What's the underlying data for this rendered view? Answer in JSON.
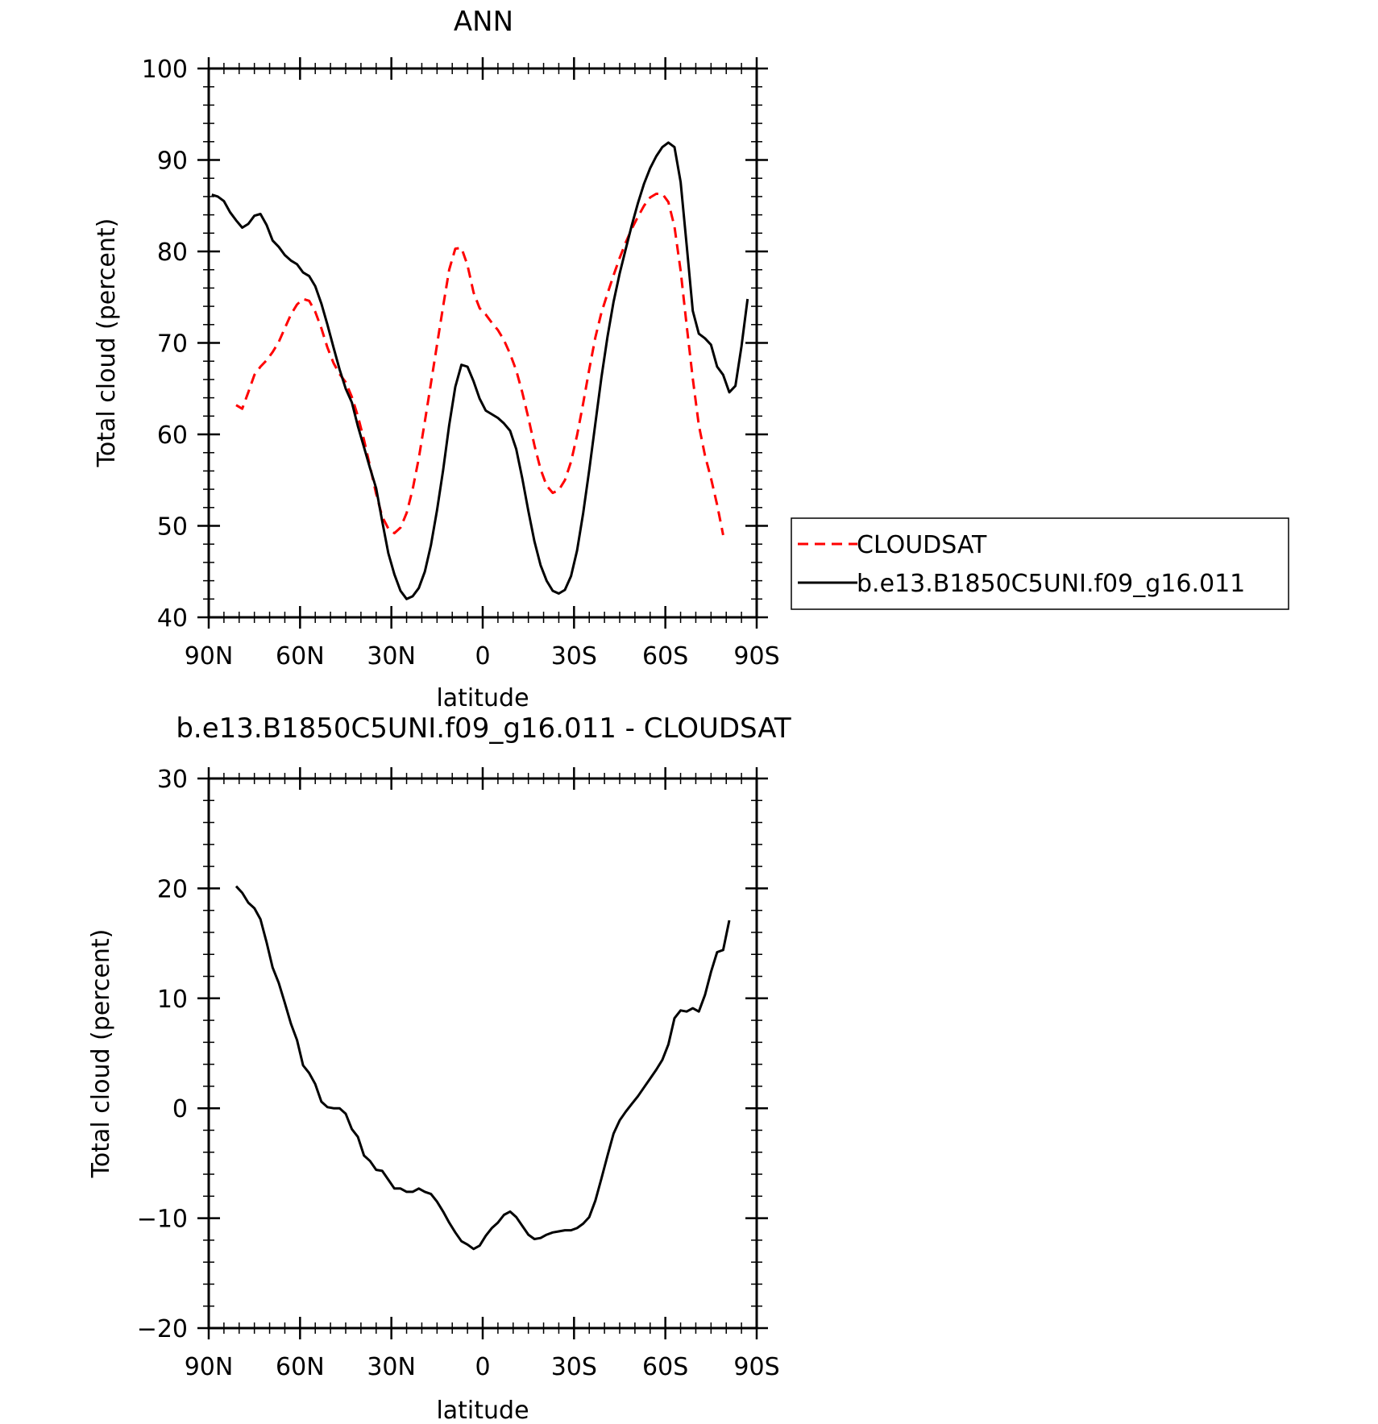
{
  "chart_data": [
    {
      "type": "line",
      "title": "ANN",
      "xlabel": "latitude",
      "ylabel": "Total cloud (percent)",
      "xlim": [
        90,
        -90
      ],
      "ylim": [
        40,
        100
      ],
      "xticks": [
        {
          "v": 90,
          "label": "90N"
        },
        {
          "v": 60,
          "label": "60N"
        },
        {
          "v": 30,
          "label": "30N"
        },
        {
          "v": 0,
          "label": "0"
        },
        {
          "v": -30,
          "label": "30S"
        },
        {
          "v": -60,
          "label": "60S"
        },
        {
          "v": -90,
          "label": "90S"
        }
      ],
      "yticks": [
        {
          "v": 40,
          "label": "40"
        },
        {
          "v": 50,
          "label": "50"
        },
        {
          "v": 60,
          "label": "60"
        },
        {
          "v": 70,
          "label": "70"
        },
        {
          "v": 80,
          "label": "80"
        },
        {
          "v": 90,
          "label": "90"
        },
        {
          "v": 100,
          "label": "100"
        }
      ],
      "legend_position": "right",
      "series": [
        {
          "name": "CLOUDSAT",
          "color": "#ff0000",
          "dash": "dashed",
          "points": [
            [
              81,
              63.2
            ],
            [
              79,
              62.8
            ],
            [
              77,
              64.6
            ],
            [
              75,
              66.5
            ],
            [
              73,
              67.4
            ],
            [
              71,
              68.1
            ],
            [
              69,
              69.0
            ],
            [
              67,
              70.1
            ],
            [
              65,
              71.6
            ],
            [
              63,
              73.1
            ],
            [
              61,
              74.2
            ],
            [
              59,
              74.8
            ],
            [
              57,
              74.6
            ],
            [
              55,
              73.4
            ],
            [
              53,
              71.6
            ],
            [
              51,
              69.5
            ],
            [
              49,
              67.8
            ],
            [
              47,
              66.6
            ],
            [
              45,
              65.7
            ],
            [
              43,
              64.1
            ],
            [
              41,
              62.0
            ],
            [
              39,
              59.4
            ],
            [
              37,
              56.5
            ],
            [
              35,
              53.5
            ],
            [
              33,
              51.0
            ],
            [
              31,
              49.7
            ],
            [
              29,
              49.2
            ],
            [
              27,
              49.8
            ],
            [
              25,
              51.4
            ],
            [
              23,
              54.0
            ],
            [
              21,
              57.4
            ],
            [
              19,
              61.4
            ],
            [
              17,
              65.6
            ],
            [
              15,
              69.8
            ],
            [
              13,
              74.0
            ],
            [
              11,
              78.0
            ],
            [
              9,
              80.3
            ],
            [
              7,
              80.4
            ],
            [
              5,
              78.5
            ],
            [
              3,
              75.5
            ],
            [
              1,
              73.8
            ],
            [
              -1,
              73.1
            ],
            [
              -3,
              72.2
            ],
            [
              -5,
              71.4
            ],
            [
              -7,
              70.3
            ],
            [
              -9,
              68.8
            ],
            [
              -11,
              67.0
            ],
            [
              -13,
              64.6
            ],
            [
              -15,
              61.8
            ],
            [
              -17,
              58.8
            ],
            [
              -19,
              56.2
            ],
            [
              -21,
              54.4
            ],
            [
              -23,
              53.6
            ],
            [
              -25,
              53.9
            ],
            [
              -27,
              55.0
            ],
            [
              -29,
              57.0
            ],
            [
              -31,
              59.9
            ],
            [
              -33,
              63.4
            ],
            [
              -35,
              67.1
            ],
            [
              -37,
              70.6
            ],
            [
              -39,
              73.3
            ],
            [
              -41,
              75.4
            ],
            [
              -43,
              77.4
            ],
            [
              -45,
              79.3
            ],
            [
              -47,
              81.0
            ],
            [
              -49,
              82.5
            ],
            [
              -51,
              83.8
            ],
            [
              -53,
              85.0
            ],
            [
              -55,
              85.9
            ],
            [
              -57,
              86.3
            ],
            [
              -59,
              86.3
            ],
            [
              -61,
              85.4
            ],
            [
              -63,
              82.7
            ],
            [
              -65,
              77.9
            ],
            [
              -67,
              71.9
            ],
            [
              -69,
              66.1
            ],
            [
              -71,
              61.0
            ],
            [
              -73,
              57.7
            ],
            [
              -75,
              55.2
            ],
            [
              -77,
              52.3
            ],
            [
              -79,
              49.0
            ]
          ]
        },
        {
          "name": "b.e13.B1850C5UNI.f09_g16.011",
          "color": "#000000",
          "dash": "solid",
          "points": [
            [
              89,
              86.2
            ],
            [
              87,
              86.0
            ],
            [
              85,
              85.5
            ],
            [
              83,
              84.3
            ],
            [
              81,
              83.4
            ],
            [
              79,
              82.6
            ],
            [
              77,
              83.0
            ],
            [
              75,
              83.9
            ],
            [
              73,
              84.1
            ],
            [
              71,
              82.9
            ],
            [
              69,
              81.2
            ],
            [
              67,
              80.5
            ],
            [
              65,
              79.6
            ],
            [
              63,
              79.0
            ],
            [
              61,
              78.6
            ],
            [
              59,
              77.7
            ],
            [
              57,
              77.3
            ],
            [
              55,
              76.2
            ],
            [
              53,
              74.3
            ],
            [
              51,
              72.0
            ],
            [
              49,
              69.5
            ],
            [
              47,
              67.1
            ],
            [
              45,
              65.0
            ],
            [
              43,
              63.5
            ],
            [
              41,
              60.9
            ],
            [
              39,
              58.6
            ],
            [
              37,
              56.3
            ],
            [
              35,
              54.1
            ],
            [
              33,
              50.5
            ],
            [
              31,
              47.0
            ],
            [
              29,
              44.7
            ],
            [
              27,
              42.9
            ],
            [
              25,
              42.0
            ],
            [
              23,
              42.3
            ],
            [
              21,
              43.2
            ],
            [
              19,
              45.0
            ],
            [
              17,
              47.9
            ],
            [
              15,
              51.7
            ],
            [
              13,
              56.1
            ],
            [
              11,
              61.0
            ],
            [
              9,
              65.2
            ],
            [
              7,
              67.6
            ],
            [
              5,
              67.4
            ],
            [
              3,
              65.8
            ],
            [
              1,
              63.9
            ],
            [
              -1,
              62.6
            ],
            [
              -3,
              62.2
            ],
            [
              -5,
              61.8
            ],
            [
              -7,
              61.2
            ],
            [
              -9,
              60.4
            ],
            [
              -11,
              58.4
            ],
            [
              -13,
              55.2
            ],
            [
              -15,
              51.6
            ],
            [
              -17,
              48.3
            ],
            [
              -19,
              45.7
            ],
            [
              -21,
              44.0
            ],
            [
              -23,
              42.9
            ],
            [
              -25,
              42.6
            ],
            [
              -27,
              43.0
            ],
            [
              -29,
              44.5
            ],
            [
              -31,
              47.3
            ],
            [
              -33,
              51.4
            ],
            [
              -35,
              56.1
            ],
            [
              -37,
              61.2
            ],
            [
              -39,
              66.2
            ],
            [
              -41,
              70.7
            ],
            [
              -43,
              74.5
            ],
            [
              -45,
              77.6
            ],
            [
              -47,
              80.3
            ],
            [
              -49,
              82.9
            ],
            [
              -51,
              85.3
            ],
            [
              -53,
              87.4
            ],
            [
              -55,
              89.1
            ],
            [
              -57,
              90.4
            ],
            [
              -59,
              91.4
            ],
            [
              -61,
              91.9
            ],
            [
              -63,
              91.4
            ],
            [
              -65,
              87.6
            ],
            [
              -67,
              80.7
            ],
            [
              -69,
              73.5
            ],
            [
              -71,
              71.0
            ],
            [
              -73,
              70.5
            ],
            [
              -75,
              69.8
            ],
            [
              -77,
              67.4
            ],
            [
              -79,
              66.5
            ],
            [
              -81,
              64.6
            ],
            [
              -83,
              65.3
            ],
            [
              -85,
              69.6
            ],
            [
              -87,
              74.8
            ]
          ]
        }
      ]
    },
    {
      "type": "line",
      "title": "b.e13.B1850C5UNI.f09_g16.011 - CLOUDSAT",
      "xlabel": "latitude",
      "ylabel": "Total cloud (percent)",
      "xlim": [
        90,
        -90
      ],
      "ylim": [
        -20,
        30
      ],
      "xticks": [
        {
          "v": 90,
          "label": "90N"
        },
        {
          "v": 60,
          "label": "60N"
        },
        {
          "v": 30,
          "label": "30N"
        },
        {
          "v": 0,
          "label": "0"
        },
        {
          "v": -30,
          "label": "30S"
        },
        {
          "v": -60,
          "label": "60S"
        },
        {
          "v": -90,
          "label": "90S"
        }
      ],
      "yticks": [
        {
          "v": -20,
          "label": "−20"
        },
        {
          "v": -10,
          "label": "−10"
        },
        {
          "v": 0,
          "label": "0"
        },
        {
          "v": 10,
          "label": "10"
        },
        {
          "v": 20,
          "label": "20"
        },
        {
          "v": 30,
          "label": "30"
        }
      ],
      "series": [
        {
          "color": "#000000",
          "dash": "solid",
          "points": [
            [
              81,
              20.2
            ],
            [
              79,
              19.6
            ],
            [
              77,
              18.7
            ],
            [
              75,
              18.2
            ],
            [
              73,
              17.2
            ],
            [
              71,
              15.1
            ],
            [
              69,
              12.8
            ],
            [
              67,
              11.4
            ],
            [
              65,
              9.6
            ],
            [
              63,
              7.7
            ],
            [
              61,
              6.2
            ],
            [
              59,
              3.9
            ],
            [
              57,
              3.2
            ],
            [
              55,
              2.2
            ],
            [
              53,
              0.6
            ],
            [
              51,
              0.1
            ],
            [
              49,
              0.0
            ],
            [
              47,
              0.0
            ],
            [
              45,
              -0.5
            ],
            [
              43,
              -1.9
            ],
            [
              41,
              -2.6
            ],
            [
              39,
              -4.3
            ],
            [
              37,
              -4.8
            ],
            [
              35,
              -5.6
            ],
            [
              33,
              -5.7
            ],
            [
              31,
              -6.5
            ],
            [
              29,
              -7.3
            ],
            [
              27,
              -7.3
            ],
            [
              25,
              -7.6
            ],
            [
              23,
              -7.6
            ],
            [
              21,
              -7.3
            ],
            [
              19,
              -7.6
            ],
            [
              17,
              -7.8
            ],
            [
              15,
              -8.5
            ],
            [
              13,
              -9.4
            ],
            [
              11,
              -10.4
            ],
            [
              9,
              -11.3
            ],
            [
              7,
              -12.1
            ],
            [
              5,
              -12.4
            ],
            [
              3,
              -12.8
            ],
            [
              1,
              -12.5
            ],
            [
              -1,
              -11.6
            ],
            [
              -3,
              -10.9
            ],
            [
              -5,
              -10.4
            ],
            [
              -7,
              -9.7
            ],
            [
              -9,
              -9.4
            ],
            [
              -11,
              -9.9
            ],
            [
              -13,
              -10.7
            ],
            [
              -15,
              -11.5
            ],
            [
              -17,
              -11.9
            ],
            [
              -19,
              -11.8
            ],
            [
              -21,
              -11.5
            ],
            [
              -23,
              -11.3
            ],
            [
              -25,
              -11.2
            ],
            [
              -27,
              -11.1
            ],
            [
              -29,
              -11.1
            ],
            [
              -31,
              -10.9
            ],
            [
              -33,
              -10.5
            ],
            [
              -35,
              -9.9
            ],
            [
              -37,
              -8.4
            ],
            [
              -39,
              -6.4
            ],
            [
              -41,
              -4.3
            ],
            [
              -43,
              -2.3
            ],
            [
              -45,
              -1.1
            ],
            [
              -47,
              -0.3
            ],
            [
              -49,
              0.4
            ],
            [
              -51,
              1.1
            ],
            [
              -53,
              1.9
            ],
            [
              -55,
              2.7
            ],
            [
              -57,
              3.5
            ],
            [
              -59,
              4.4
            ],
            [
              -61,
              5.8
            ],
            [
              -63,
              8.2
            ],
            [
              -65,
              8.9
            ],
            [
              -67,
              8.8
            ],
            [
              -69,
              9.1
            ],
            [
              -71,
              8.8
            ],
            [
              -73,
              10.3
            ],
            [
              -75,
              12.4
            ],
            [
              -77,
              14.2
            ],
            [
              -79,
              14.4
            ],
            [
              -81,
              17.1
            ]
          ]
        }
      ]
    }
  ]
}
